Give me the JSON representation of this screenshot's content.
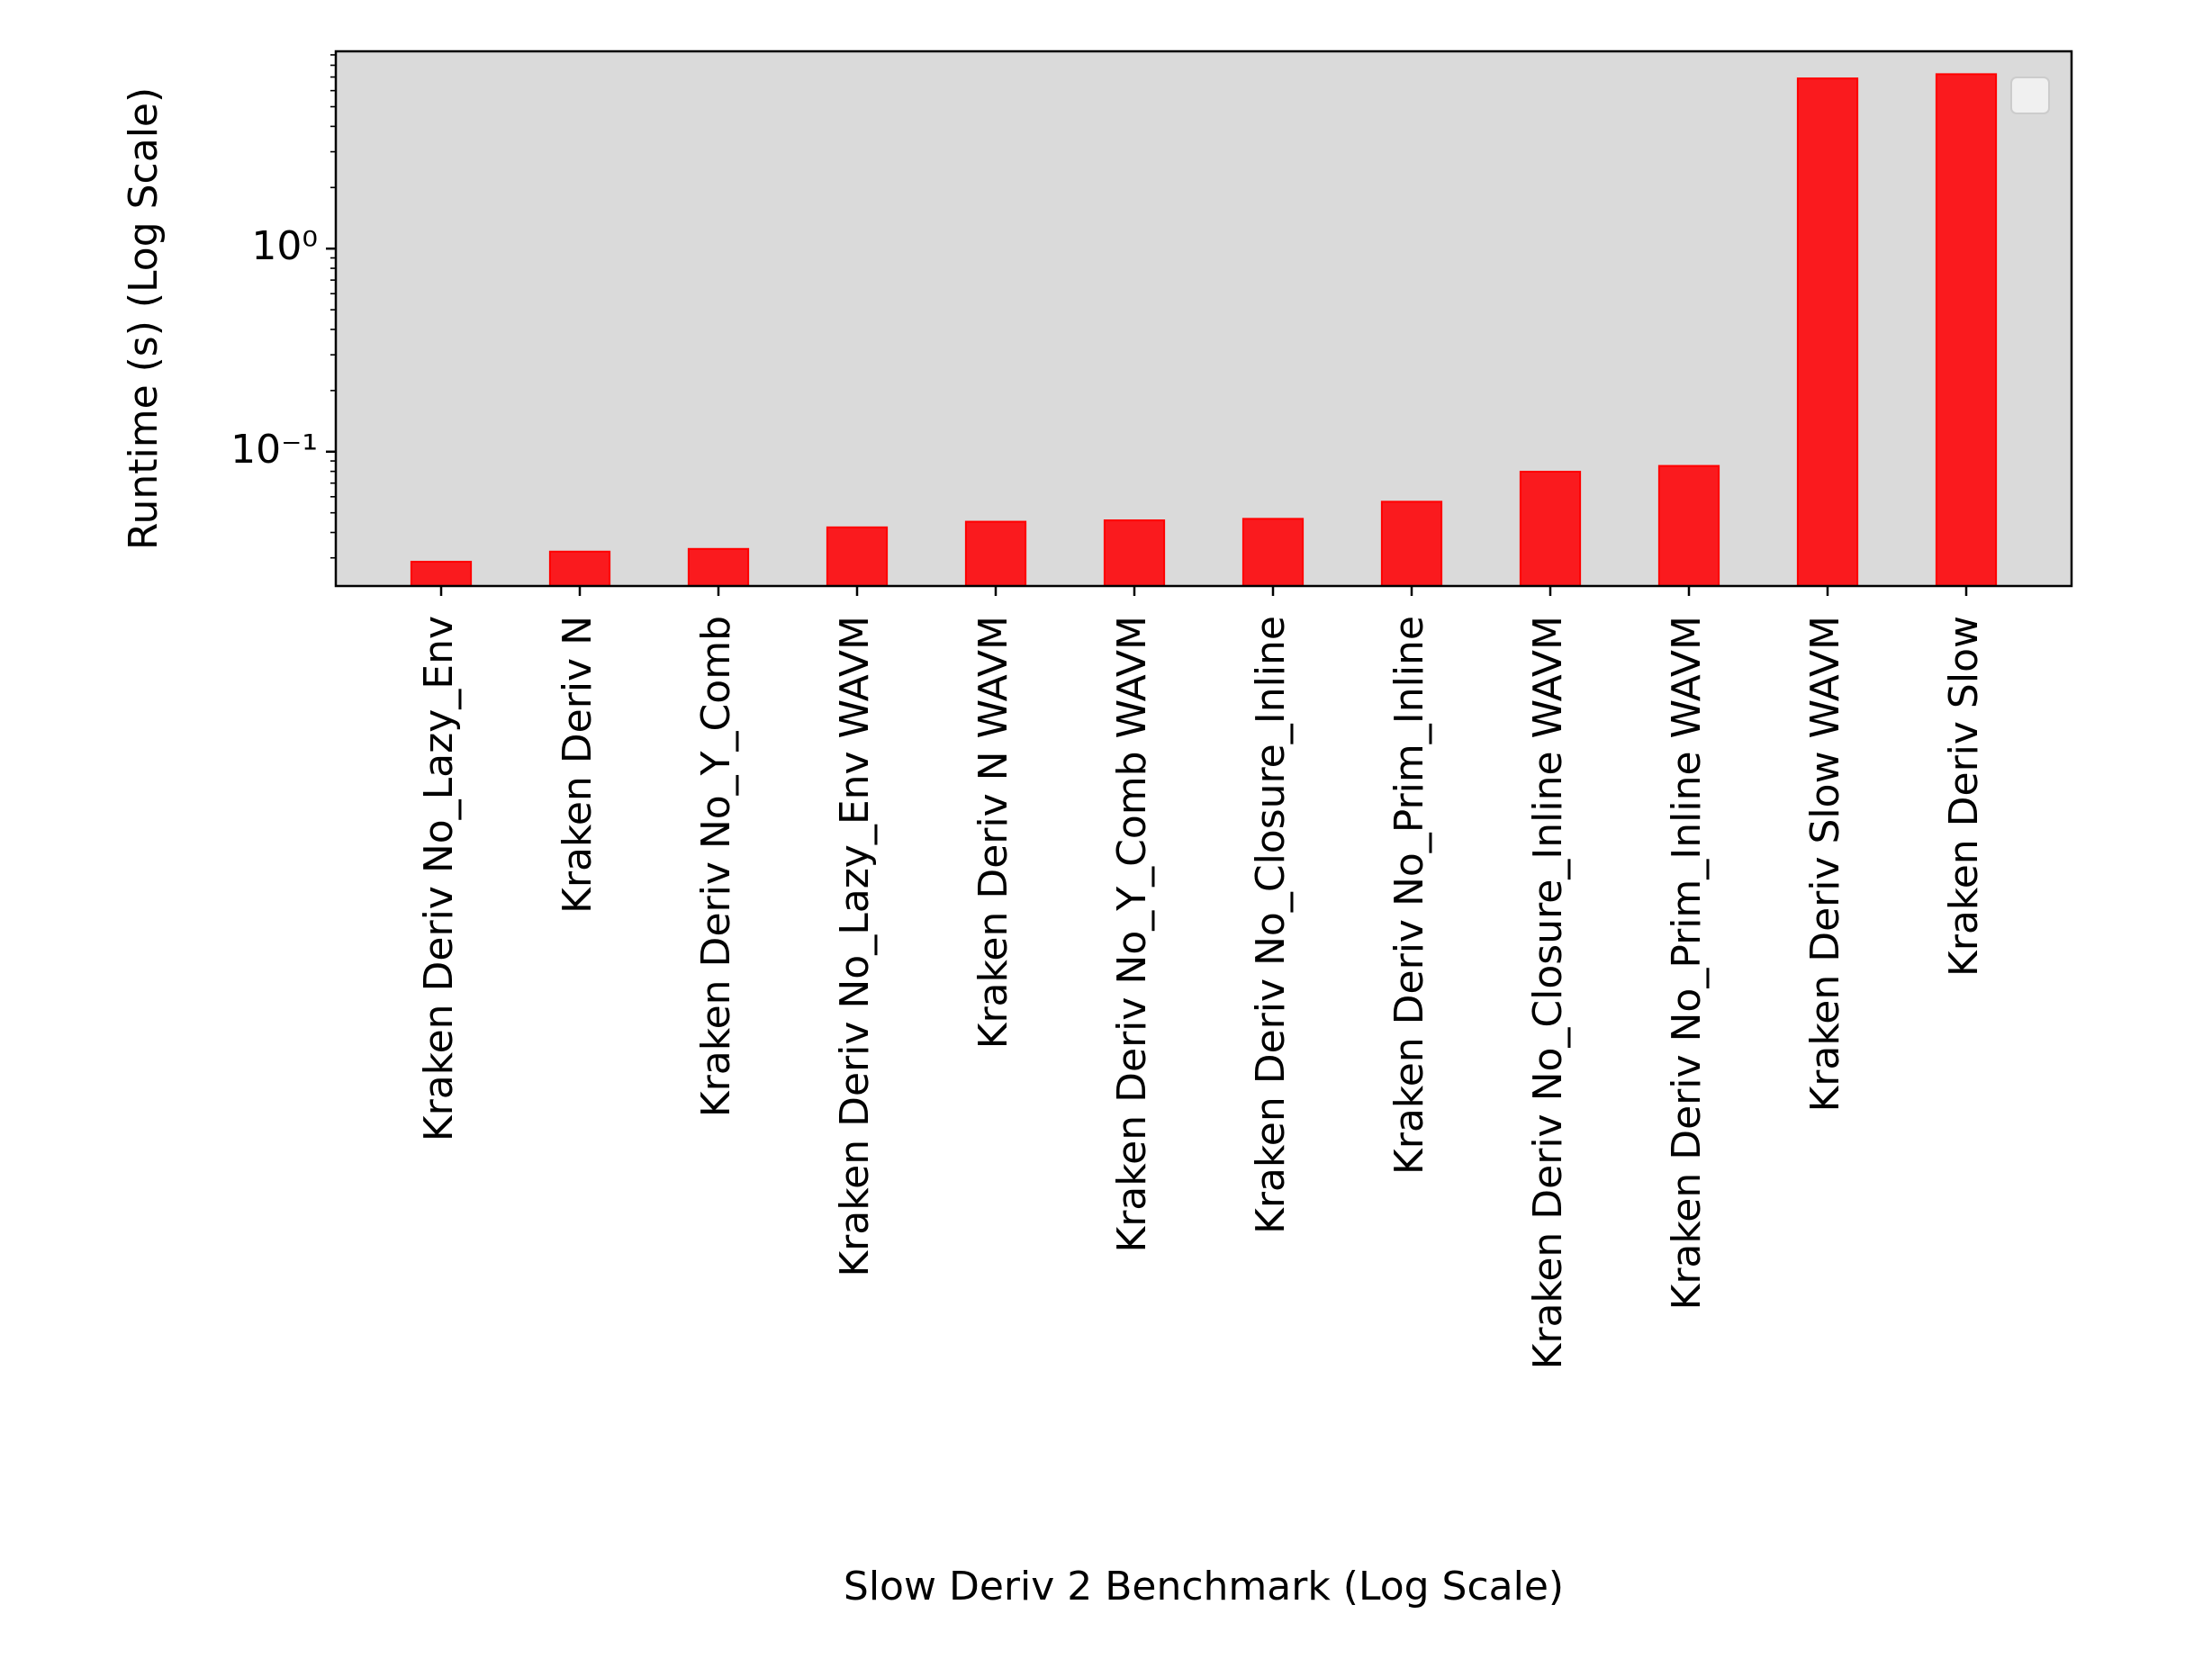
{
  "chart_data": {
    "type": "bar",
    "xlabel": "Slow Deriv 2 Benchmark (Log Scale)",
    "ylabel": "Runtime (s) (Log Scale)",
    "categories": [
      "Kraken Deriv No_Lazy_Env",
      "Kraken Deriv N",
      "Kraken Deriv No_Y_Comb",
      "Kraken Deriv No_Lazy_Env WAVM",
      "Kraken Deriv N WAVM",
      "Kraken Deriv No_Y_Comb WAVM",
      "Kraken Deriv No_Closure_Inline",
      "Kraken Deriv No_Prim_Inline",
      "Kraken Deriv No_Closure_Inline WAVM",
      "Kraken Deriv No_Prim_Inline WAVM",
      "Kraken Deriv Slow WAVM",
      "Kraken Deriv Slow"
    ],
    "values": [
      0.0287,
      0.0322,
      0.0332,
      0.0424,
      0.0452,
      0.0459,
      0.0467,
      0.0567,
      0.0797,
      0.0851,
      6.89,
      7.23
    ],
    "color": "#fa1a1e",
    "log_scale": true,
    "ylim": [
      0.0218,
      9.37
    ],
    "yticks": [
      {
        "value": 0.1,
        "label": "10⁻¹"
      },
      {
        "value": 1,
        "label": "10⁰"
      }
    ],
    "yminorticks": [
      0.03,
      0.04,
      0.05,
      0.06,
      0.07,
      0.08,
      0.09,
      0.2,
      0.3,
      0.4,
      0.5,
      0.6,
      0.7,
      0.8,
      0.9,
      2,
      3,
      4,
      5,
      6,
      7,
      8,
      9
    ],
    "background": "#dadada"
  }
}
